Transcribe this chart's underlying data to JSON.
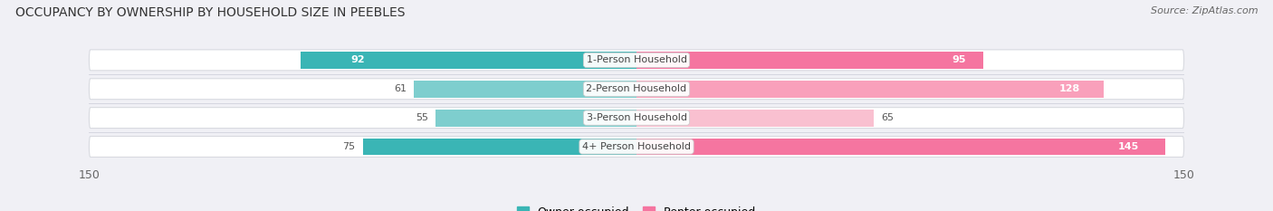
{
  "title": "OCCUPANCY BY OWNERSHIP BY HOUSEHOLD SIZE IN PEEBLES",
  "source": "Source: ZipAtlas.com",
  "categories": [
    "1-Person Household",
    "2-Person Household",
    "3-Person Household",
    "4+ Person Household"
  ],
  "owner_values": [
    92,
    61,
    55,
    75
  ],
  "renter_values": [
    95,
    128,
    65,
    145
  ],
  "owner_colors": [
    "#3ab5b5",
    "#7ecece",
    "#7ecece",
    "#3ab5b5"
  ],
  "renter_colors": [
    "#f575a0",
    "#f9a0bb",
    "#f9c0d0",
    "#f575a0"
  ],
  "axis_max": 150,
  "bg_color": "#f0f0f5",
  "row_bg_color": "#ffffff",
  "row_alt_bg": "#e8eaf0",
  "title_fontsize": 10,
  "source_fontsize": 8,
  "label_fontsize": 8,
  "value_fontsize": 8,
  "tick_fontsize": 9,
  "legend_fontsize": 9,
  "owner_legend_color": "#3ab5b5",
  "renter_legend_color": "#f575a0"
}
